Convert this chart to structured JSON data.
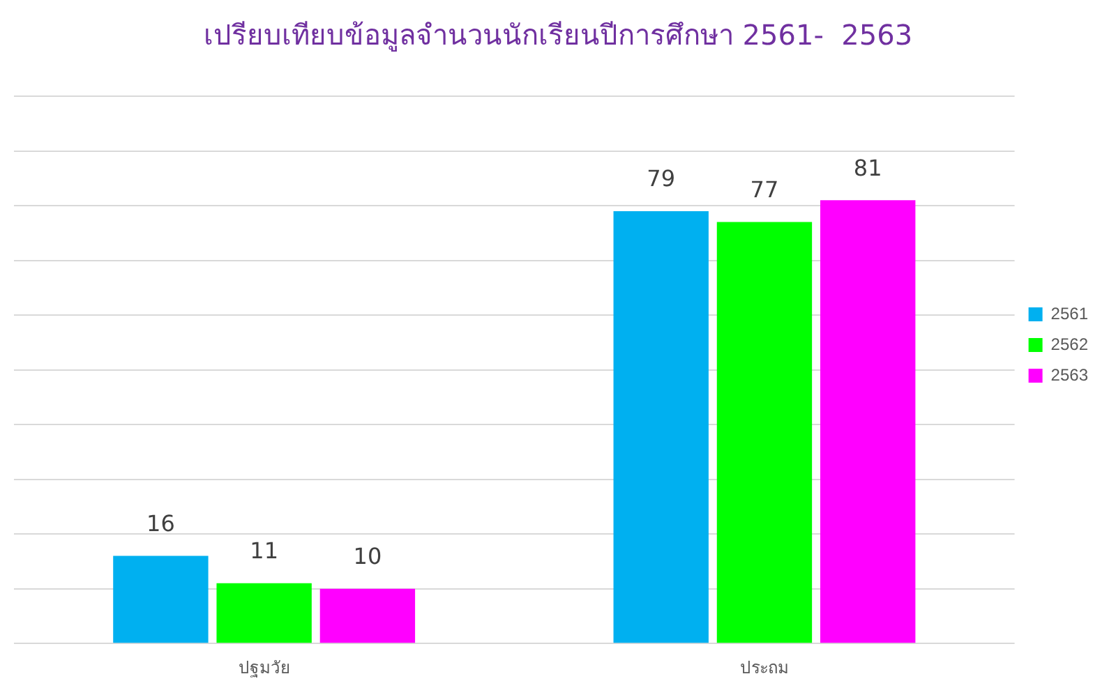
{
  "chart_data": {
    "type": "bar",
    "title": "เปรียบเทียบข้อมูลจำนวนนักเรียนปีการศึกษา 2561-  2563",
    "categories": [
      "ปฐมวัย",
      "ประถม"
    ],
    "series": [
      {
        "name": "2561",
        "color": "#00b0f0",
        "values": [
          16,
          79
        ]
      },
      {
        "name": "2562",
        "color": "#00ff00",
        "values": [
          11,
          77
        ]
      },
      {
        "name": "2563",
        "color": "#ff00ff",
        "values": [
          10,
          81
        ]
      }
    ],
    "ylim": [
      0,
      100
    ],
    "yticks": [
      {
        "value": 0,
        "label": null
      },
      {
        "value": 10,
        "label": null
      },
      {
        "value": 20,
        "label": null
      },
      {
        "value": 30,
        "label": null
      },
      {
        "value": 40,
        "label": null
      },
      {
        "value": 50,
        "label": null
      },
      {
        "value": 60,
        "label": null
      },
      {
        "value": 70,
        "label": null
      },
      {
        "value": 80,
        "label": null
      },
      {
        "value": 90,
        "label": null
      },
      {
        "value": 100,
        "label": null
      }
    ],
    "tick_labels": "x",
    "grid": "y",
    "legend": "right",
    "data_labels": true
  }
}
